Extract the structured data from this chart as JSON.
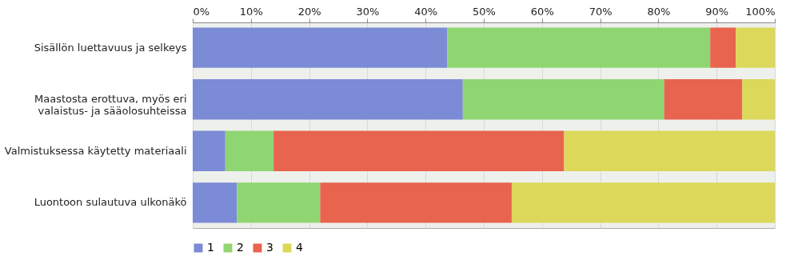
{
  "chart_data": {
    "type": "bar",
    "orientation": "horizontal",
    "stacked": true,
    "categories": [
      "Sisällön luettavuus ja selkeys",
      "Maastosta erottuva, myös eri\nvalaistus- ja sääolosuhteissa",
      "Valmistuksessa käytetty materiaali",
      "Luontoon sulautuva ulkonäkö"
    ],
    "series": [
      {
        "name": "1",
        "color": "#7b8bd6",
        "values": [
          43.7,
          46.4,
          5.6,
          7.6
        ]
      },
      {
        "name": "2",
        "color": "#8fd672",
        "values": [
          45.2,
          34.6,
          8.3,
          14.3
        ]
      },
      {
        "name": "3",
        "color": "#e8644f",
        "values": [
          4.4,
          13.4,
          49.9,
          32.9
        ]
      },
      {
        "name": "4",
        "color": "#dcd85a",
        "values": [
          6.7,
          5.6,
          36.2,
          45.2
        ]
      }
    ],
    "xlim": [
      0,
      100
    ],
    "xticks": [
      {
        "value": 0,
        "label": "0%"
      },
      {
        "value": 10,
        "label": "10%"
      },
      {
        "value": 20,
        "label": "20%"
      },
      {
        "value": 30,
        "label": "30%"
      },
      {
        "value": 40,
        "label": "40%"
      },
      {
        "value": 50,
        "label": "50%"
      },
      {
        "value": 60,
        "label": "60%"
      },
      {
        "value": 70,
        "label": "70%"
      },
      {
        "value": 80,
        "label": "80%"
      },
      {
        "value": 90,
        "label": "90%"
      },
      {
        "value": 100,
        "label": "100%"
      }
    ],
    "grid": "x",
    "legend": "bottom"
  }
}
